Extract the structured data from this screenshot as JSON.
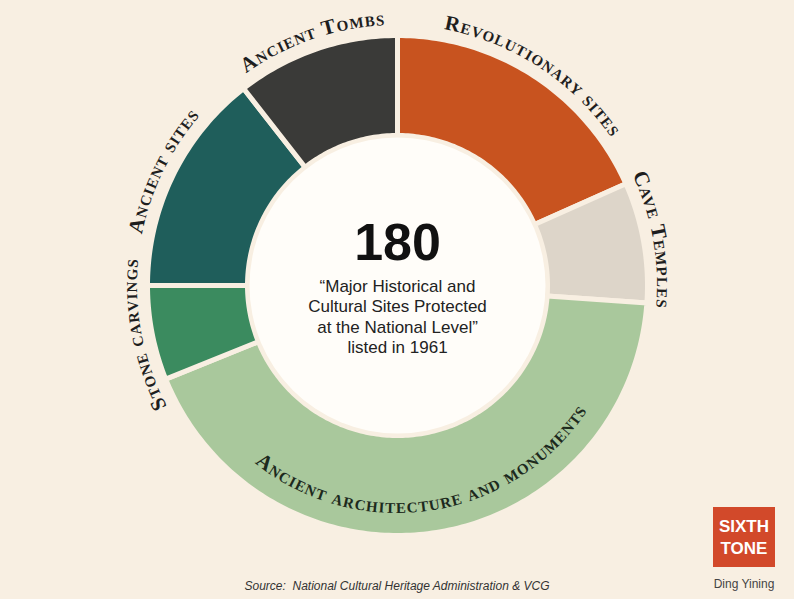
{
  "chart_data": {
    "type": "pie",
    "total": 180,
    "subtitle": "“Major Historical and\nCultural Sites Protected\nat the National Level”\nlisted in 1961",
    "categories": [
      "Revolutionary sites",
      "Cave Temples",
      "Ancient architecture and monuments",
      "Stone carvings",
      "Ancient sites",
      "Ancient Tombs"
    ],
    "values": [
      33,
      14,
      77,
      11,
      26,
      19
    ],
    "colors": [
      "#c8531f",
      "#ddd5c9",
      "#a9c89c",
      "#3b8b5f",
      "#1f5e5b",
      "#3a3a38"
    ],
    "source": "Source:  National Cultural Heritage Administration & VCG",
    "logo": "SIXTH\nTONE",
    "author": "Ding Yining"
  }
}
